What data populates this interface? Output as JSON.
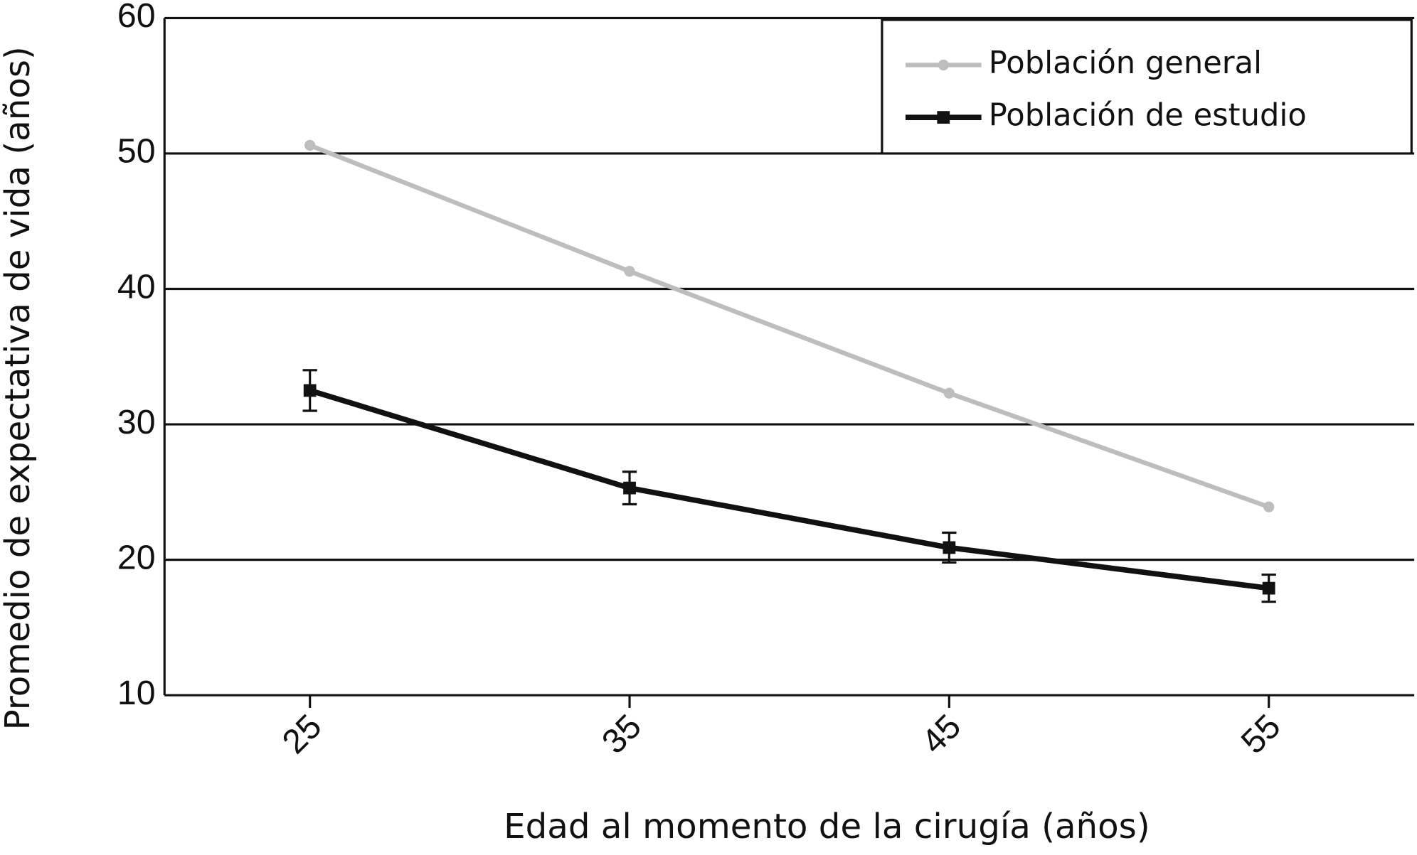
{
  "chart_data": {
    "type": "line",
    "x_label": "Edad al momento de la cirugía (años)",
    "y_label": "Promedio de expectativa de vida (años)",
    "x": [
      25,
      35,
      45,
      55
    ],
    "xlim": [
      20.45,
      59.55
    ],
    "xticks": [
      25,
      35,
      45,
      55
    ],
    "ylim": [
      10,
      60
    ],
    "yticks": [
      10,
      20,
      30,
      40,
      50,
      60
    ],
    "grid": true,
    "legend": "upper right",
    "series": [
      {
        "name": "Población general",
        "color": "#bdbdbd",
        "marker": "circle",
        "values": [
          50.6,
          41.3,
          32.3,
          23.9
        ]
      },
      {
        "name": "Población de estudio",
        "color": "#111111",
        "marker": "square",
        "values": [
          32.5,
          25.3,
          20.9,
          17.9
        ],
        "errors": [
          1.5,
          1.2,
          1.1,
          1.0
        ]
      }
    ]
  }
}
